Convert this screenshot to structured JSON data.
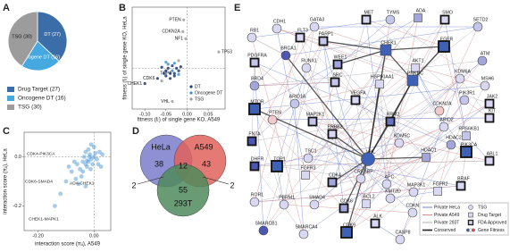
{
  "chart_data": [
    {
      "type": "pie",
      "panel": "A",
      "categories": [
        "Drug Target (27)",
        "Oncogene DT (16)",
        "TSG (30)"
      ],
      "values": [
        27,
        16,
        30
      ],
      "value_labels": [
        "DT (27)",
        "Oncogene DT (16)",
        "TSG (30)"
      ],
      "colors": [
        "#3b6ea8",
        "#45a9e0",
        "#9c9c9c"
      ]
    },
    {
      "type": "scatter",
      "panel": "B",
      "x_label": "fitness (fᵣ) of single gene KO, A549",
      "y_label": "fitness (fᵣ) of single gene KO, HeLa",
      "xlim": [
        -0.13,
        0.09
      ],
      "ylim": [
        -0.08,
        0.12
      ],
      "xticks": [
        {
          "value": -0.1,
          "label": "-0.10"
        },
        {
          "value": -0.05,
          "label": "-0.05"
        },
        {
          "value": 0,
          "label": "0.00"
        },
        {
          "value": 0.05,
          "label": "0.05"
        }
      ],
      "series": [
        {
          "name": "DT",
          "color": "#1f3a78",
          "x": [
            -0.1,
            -0.07,
            -0.03,
            -0.05,
            -0.045,
            -0.04,
            -0.035,
            -0.03,
            -0.025,
            -0.02,
            -0.055,
            -0.06,
            -0.015,
            -0.04,
            -0.05
          ],
          "values": [
            -0.03,
            -0.02,
            -0.01,
            -0.005,
            0.0,
            -0.01,
            0.005,
            -0.015,
            0.0,
            -0.005,
            -0.01,
            0.002,
            0.003,
            -0.02,
            -0.015
          ],
          "labels": [
            "CHEK1",
            "CDK6",
            "TOP1",
            null,
            null,
            null,
            null,
            null,
            null,
            null,
            null,
            null,
            null,
            null,
            null
          ]
        },
        {
          "name": "Oncogene DT",
          "color": "#3f8fd0",
          "x": [
            -0.045,
            -0.03,
            -0.02,
            -0.05,
            -0.035
          ],
          "values": [
            0.008,
            0.01,
            -0.012,
            0.012,
            -0.005
          ],
          "labels": [
            null,
            null,
            null,
            null,
            null
          ]
        },
        {
          "name": "TSG",
          "color": "#9e9e9e",
          "x": [
            -0.008,
            -0.01,
            -0.003,
            0.075,
            -0.035,
            -0.06,
            -0.02
          ],
          "values": [
            0.095,
            0.072,
            0.058,
            0.032,
            -0.065,
            -0.025,
            0.015
          ],
          "labels": [
            "PTEN",
            "CDKN2A",
            "NF1",
            "TP53",
            "VHL",
            null,
            null
          ]
        }
      ]
    },
    {
      "type": "scatter",
      "panel": "C",
      "x_label": "interaction score (πᵢⱼ), A549",
      "y_label": "interaction score (πᵢⱼ), HeLa",
      "xlim": [
        -0.25,
        0.06
      ],
      "ylim": [
        -0.3,
        0.1
      ],
      "xticks": [
        {
          "value": -0.2,
          "label": "-0.20"
        },
        {
          "value": 0,
          "label": "0.00"
        }
      ],
      "yticks": [
        -0.2,
        {
          "value": 0,
          "label": "0.0"
        }
      ],
      "color": "#3a8fd0",
      "x": [
        -0.02,
        -0.01,
        -0.03,
        0.0,
        -0.04,
        -0.015,
        -0.025,
        0.01,
        -0.05,
        -0.06,
        -0.035,
        0.02,
        -0.08,
        -0.005,
        -0.045,
        -0.1,
        0.03,
        -0.02,
        -0.07,
        -0.012,
        -0.03,
        0.0,
        -0.09,
        -0.055,
        -0.015,
        0.015,
        -0.12,
        -0.04,
        -0.025,
        -0.065,
        0.005,
        -0.14,
        -0.03,
        -0.01,
        0.025
      ],
      "values": [
        -0.02,
        -0.01,
        -0.03,
        0.0,
        -0.02,
        0.01,
        -0.04,
        -0.01,
        -0.05,
        -0.03,
        0.0,
        0.02,
        -0.06,
        -0.03,
        -0.08,
        -0.1,
        0.01,
        0.03,
        -0.02,
        -0.05,
        0.02,
        0.04,
        -0.04,
        -0.11,
        0.0,
        -0.03,
        -0.15,
        -0.06,
        -0.015,
        -0.09,
        0.015,
        -0.2,
        -0.12,
        0.05,
        -0.04
      ],
      "annotations": [
        "CDK4-PIK3CA",
        "CDK6-SMAD4",
        "ADA-CHEK1",
        "CHEK1-MAPK1"
      ]
    },
    {
      "type": "venn",
      "panel": "D",
      "sets": [
        {
          "name": "HeLa",
          "color": "#7b7ccb"
        },
        {
          "name": "A549",
          "color": "#e0625a"
        },
        {
          "name": "293T",
          "color": "#4f8b5c"
        }
      ],
      "values": [
        38,
        43,
        55,
        12,
        2,
        2
      ]
    }
  ],
  "network": {
    "panel": "E",
    "nodes": [
      {
        "label": "GATA3",
        "shape": "circle",
        "fda": false,
        "fill": "#d8d8f2"
      },
      {
        "label": "MET",
        "shape": "square",
        "fda": true,
        "fill": "#d8d8f2"
      },
      {
        "label": "TYMS",
        "shape": "circle",
        "fda": false,
        "fill": "#c3c5ea"
      },
      {
        "label": "ADA",
        "shape": "square",
        "fda": false,
        "fill": "#a3a6dd"
      },
      {
        "label": "SMO",
        "shape": "square",
        "fda": true,
        "fill": "#d8d8f2"
      },
      {
        "label": "SETD2",
        "shape": "circle",
        "fda": false,
        "fill": "#c3c5ea"
      },
      {
        "label": "CDH1",
        "shape": "circle",
        "fda": false,
        "fill": "#d8d8f2"
      },
      {
        "label": "FLT3",
        "shape": "square",
        "fda": true,
        "fill": "#d8d8f2"
      },
      {
        "label": "PARP1",
        "shape": "square",
        "fda": true,
        "fill": "#c3c5ea"
      },
      {
        "label": "RB1",
        "shape": "circle",
        "fda": false,
        "fill": "#d8d8f2"
      },
      {
        "label": "BRCA1",
        "shape": "circle",
        "fda": false,
        "fill": "#4c56b3"
      },
      {
        "label": "CHEK1",
        "shape": "square",
        "fda": false,
        "fill": "#3f61b5"
      },
      {
        "label": "EGFR",
        "shape": "square",
        "fda": true,
        "fill": "#3f61b5"
      },
      {
        "label": "ATM",
        "shape": "circle",
        "fda": false,
        "fill": "#a3a6dd"
      },
      {
        "label": "PDGFRA",
        "shape": "square",
        "fda": true,
        "fill": "#c3c5ea"
      },
      {
        "label": "RUNX1",
        "shape": "circle",
        "fda": false,
        "fill": "#d8d8f2"
      },
      {
        "label": "WEE1",
        "shape": "square",
        "fda": true,
        "fill": "#a3a6dd"
      },
      {
        "label": "AKT1",
        "shape": "square",
        "fda": false,
        "fill": "#d8d8f2"
      },
      {
        "label": "KDM6A",
        "shape": "circle",
        "fda": false,
        "fill": "#d8d8f2"
      },
      {
        "label": "MSH6",
        "shape": "circle",
        "fda": false,
        "fill": "#d8d8f2"
      },
      {
        "label": "BRD4",
        "shape": "circle",
        "fda": false,
        "fill": "#a3a6dd"
      },
      {
        "label": "SRC",
        "shape": "square",
        "fda": true,
        "fill": "#c3c5ea"
      },
      {
        "label": "HSP90AA1",
        "shape": "square",
        "fda": false,
        "fill": "#d8d8f2"
      },
      {
        "label": "PRKDC",
        "shape": "square",
        "fda": false,
        "fill": "#3f61b5"
      },
      {
        "label": "PIK3R1",
        "shape": "circle",
        "fda": false,
        "fill": "#c3c5ea"
      },
      {
        "label": "JAK2",
        "shape": "square",
        "fda": true,
        "fill": "#d8d8f2"
      },
      {
        "label": "MTOR",
        "shape": "square",
        "fda": true,
        "fill": "#3f61b5"
      },
      {
        "label": "ARID1A",
        "shape": "circle",
        "fda": false,
        "fill": "#c3c5ea"
      },
      {
        "label": "VEGFA",
        "shape": "square",
        "fda": true,
        "fill": "#d8d8f2"
      },
      {
        "label": "MAP2K1",
        "shape": "square",
        "fda": true,
        "fill": "#c3c5ea"
      },
      {
        "label": "CDKN2A",
        "shape": "circle",
        "fda": false,
        "fill": "#f4c9c9"
      },
      {
        "label": "KIT",
        "shape": "square",
        "fda": true,
        "fill": "#d8d8f2"
      },
      {
        "label": "PTEN",
        "shape": "circle",
        "fda": false,
        "fill": "#f4c9c9"
      },
      {
        "label": "RRM2",
        "shape": "square",
        "fda": true,
        "fill": "#6a73c2"
      },
      {
        "label": "ARID2",
        "shape": "circle",
        "fda": false,
        "fill": "#d8d8f2"
      },
      {
        "label": "RPS6KB1",
        "shape": "square",
        "fda": false,
        "fill": "#c3c5ea"
      },
      {
        "label": "ERBB2",
        "shape": "square",
        "fda": true,
        "fill": "#d8d8f2"
      },
      {
        "label": "FNTA",
        "shape": "square",
        "fda": true,
        "fill": "#4c56b3"
      },
      {
        "label": "KDM5C",
        "shape": "circle",
        "fda": false,
        "fill": "#d8d8f2"
      },
      {
        "label": "HDAC2",
        "shape": "circle",
        "fda": false,
        "fill": "#a3a6dd"
      },
      {
        "label": "TSC1",
        "shape": "circle",
        "fda": false,
        "fill": "#d8d8f2"
      },
      {
        "label": "HDAC1",
        "shape": "square",
        "fda": false,
        "fill": "#a3a6dd"
      },
      {
        "label": "ABL1",
        "shape": "square",
        "fda": true,
        "fill": "#d8d8f2"
      },
      {
        "label": "DHFR",
        "shape": "square",
        "fda": true,
        "fill": "#4c56b3"
      },
      {
        "label": "TOP1",
        "shape": "square",
        "fda": true,
        "fill": "#3f61b5"
      },
      {
        "label": "VHL",
        "shape": "circle",
        "fda": false,
        "fill": "#3f61b5"
      },
      {
        "label": "PIK3CA",
        "shape": "square",
        "fda": true,
        "fill": "#3f61b5"
      },
      {
        "label": "FGFR3",
        "shape": "square",
        "fda": false,
        "fill": "#d8d8f2"
      },
      {
        "label": "CDK4",
        "shape": "square",
        "fda": true,
        "fill": "#a3a6dd"
      },
      {
        "label": "CREBBP",
        "shape": "circle",
        "fda": false,
        "fill": "#d8d8f2"
      },
      {
        "label": "APC",
        "shape": "circle",
        "fda": false,
        "fill": "#d8d8f2"
      },
      {
        "label": "MAP3K1",
        "shape": "circle",
        "fda": false,
        "fill": "#d8d8f2"
      },
      {
        "label": "FGFR2",
        "shape": "square",
        "fda": false,
        "fill": "#d8d8f2"
      },
      {
        "label": "BRAF",
        "shape": "square",
        "fda": true,
        "fill": "#d8d8f2"
      },
      {
        "label": "ROR1",
        "shape": "circle",
        "fda": false,
        "fill": "#d8d8f2"
      },
      {
        "label": "PBRM1",
        "shape": "circle",
        "fda": false,
        "fill": "#d8d8f2"
      },
      {
        "label": "SMAD4",
        "shape": "circle",
        "fda": false,
        "fill": "#d8d8f2"
      },
      {
        "label": "CDK6",
        "shape": "square",
        "fda": true,
        "fill": "#a3a6dd"
      },
      {
        "label": "BCL2",
        "shape": "square",
        "fda": false,
        "fill": "#d8d8f2"
      },
      {
        "label": "KMT2D",
        "shape": "circle",
        "fda": false,
        "fill": "#d8d8f2"
      },
      {
        "label": "CDKN1B",
        "shape": "circle",
        "fda": false,
        "fill": "#d8d8f2"
      },
      {
        "label": "SMARCB1",
        "shape": "circle",
        "fda": false,
        "fill": "#4c56b3"
      },
      {
        "label": "SMARCA4",
        "shape": "circle",
        "fda": false,
        "fill": "#d8d8f2"
      },
      {
        "label": "CDK9",
        "shape": "square",
        "fda": true,
        "fill": "#3f61b5"
      },
      {
        "label": "ALK",
        "shape": "square",
        "fda": true,
        "fill": "#d8d8f2"
      },
      {
        "label": "CASP8",
        "shape": "circle",
        "fda": false,
        "fill": "#d8d8f2"
      }
    ],
    "legend": [
      {
        "name": "Private HeLa",
        "color": "#6d86d8"
      },
      {
        "name": "Private A549",
        "color": "#e08a8a"
      },
      {
        "name": "Private 293T",
        "color": "#b0b0b0"
      },
      {
        "name": "Conserved",
        "color": "#222222"
      },
      {
        "name": "TSG",
        "shape": "circle"
      },
      {
        "name": "Drug Target",
        "shape": "square"
      },
      {
        "name": "FDA Approved",
        "shape": "square",
        "fda": true
      },
      {
        "name": "Gene Fitness",
        "colors": [
          "#3f61b5",
          "#ffffff",
          "#e05050"
        ]
      }
    ]
  }
}
